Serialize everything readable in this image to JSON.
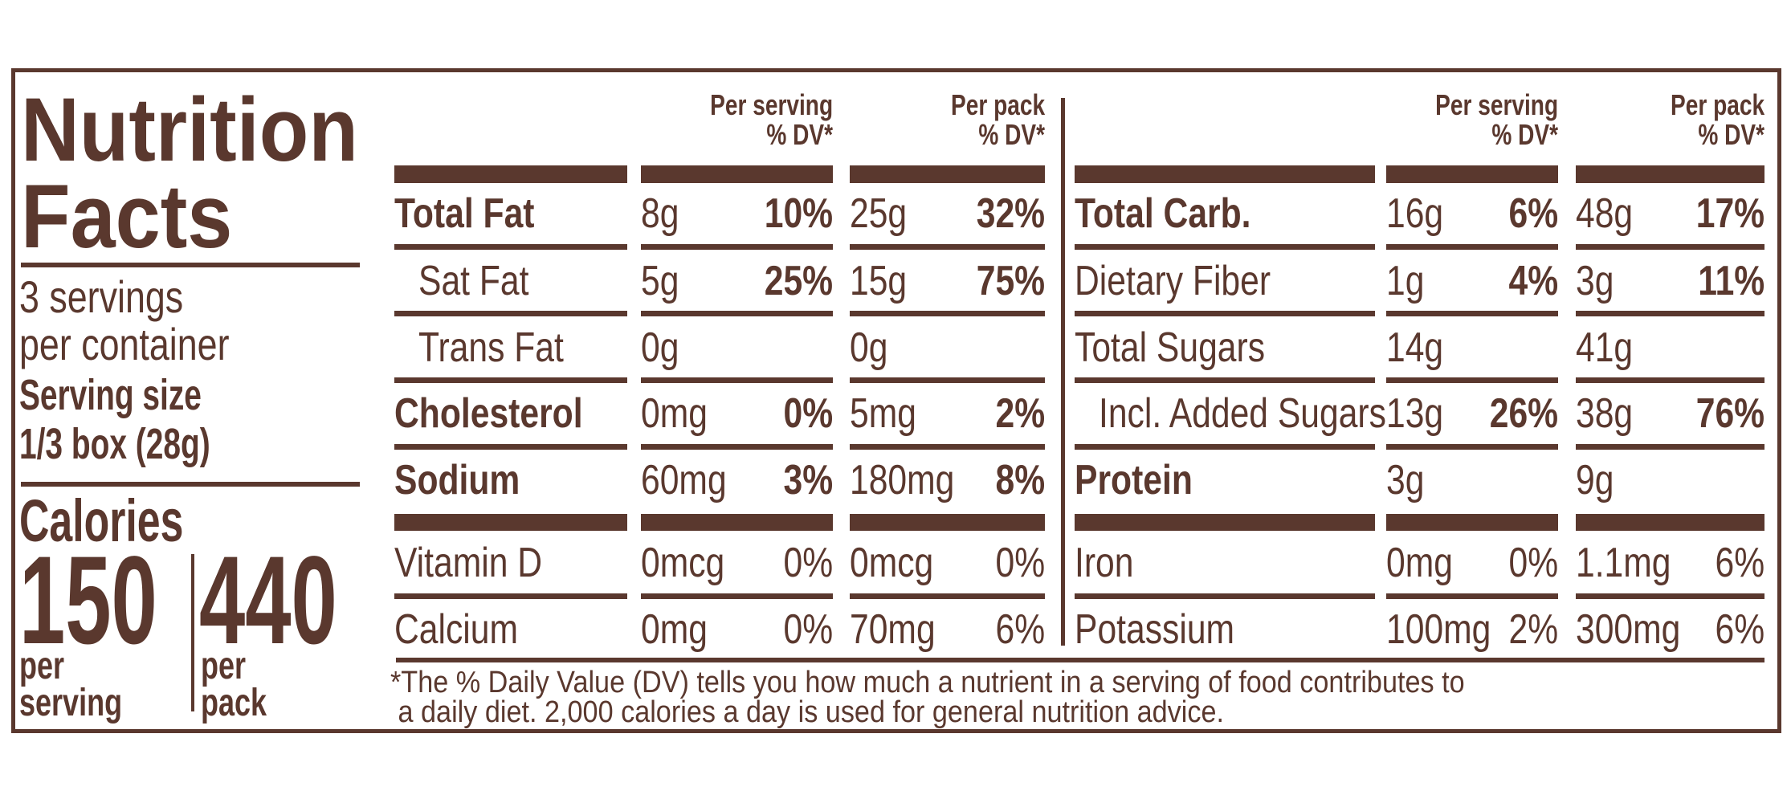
{
  "color": "#5a382e",
  "title": {
    "line1": "Nutrition",
    "line2": "Facts"
  },
  "servings": {
    "line1": "3 servings",
    "line2": "per container"
  },
  "serving_size": {
    "label": "Serving size",
    "value": "1/3 box (28g)"
  },
  "calories": {
    "label": "Calories",
    "per_serving": {
      "value": "150",
      "line1": "per",
      "line2": "serving"
    },
    "per_pack": {
      "value": "440",
      "line1": "per",
      "line2": "pack"
    }
  },
  "headers": {
    "per_serving": {
      "line1": "Per serving",
      "line2": "% DV*"
    },
    "per_pack": {
      "line1": "Per pack",
      "line2": "% DV*"
    }
  },
  "left_table": [
    {
      "name": "Total Fat",
      "bold": true,
      "indent": 0,
      "serv": "8g",
      "serv_dv": "10%",
      "pack": "25g",
      "pack_dv": "32%"
    },
    {
      "name": "Sat Fat",
      "bold": false,
      "indent": 1,
      "serv": "5g",
      "serv_dv": "25%",
      "pack": "15g",
      "pack_dv": "75%"
    },
    {
      "name": "Trans Fat",
      "bold": false,
      "indent": 1,
      "serv": "0g",
      "serv_dv": "",
      "pack": "0g",
      "pack_dv": ""
    },
    {
      "name": "Cholesterol",
      "bold": true,
      "indent": 0,
      "serv": "0mg",
      "serv_dv": "0%",
      "pack": "5mg",
      "pack_dv": "2%"
    },
    {
      "name": "Sodium",
      "bold": true,
      "indent": 0,
      "serv": "60mg",
      "serv_dv": "3%",
      "pack": "180mg",
      "pack_dv": "8%"
    }
  ],
  "right_table": [
    {
      "name": "Total Carb.",
      "bold": true,
      "indent": 0,
      "serv": "16g",
      "serv_dv": "6%",
      "pack": "48g",
      "pack_dv": "17%"
    },
    {
      "name": "Dietary Fiber",
      "bold": false,
      "indent": 0,
      "serv": "1g",
      "serv_dv": "4%",
      "pack": "3g",
      "pack_dv": "11%"
    },
    {
      "name": "Total Sugars",
      "bold": false,
      "indent": 0,
      "serv": "14g",
      "serv_dv": "",
      "pack": "41g",
      "pack_dv": ""
    },
    {
      "name": "Incl. Added Sugars",
      "bold": false,
      "indent": 1,
      "serv": "13g",
      "serv_dv": "26%",
      "pack": "38g",
      "pack_dv": "76%"
    },
    {
      "name": "Protein",
      "bold": true,
      "indent": 0,
      "serv": "3g",
      "serv_dv": "",
      "pack": "9g",
      "pack_dv": ""
    }
  ],
  "left_vitamins": [
    {
      "name": "Vitamin D",
      "serv": "0mcg",
      "serv_dv": "0%",
      "pack": "0mcg",
      "pack_dv": "0%"
    },
    {
      "name": "Calcium",
      "serv": "0mg",
      "serv_dv": "0%",
      "pack": "70mg",
      "pack_dv": "6%"
    }
  ],
  "right_vitamins": [
    {
      "name": "Iron",
      "serv": "0mg",
      "serv_dv": "0%",
      "pack": "1.1mg",
      "pack_dv": "6%"
    },
    {
      "name": "Potassium",
      "serv": "100mg",
      "serv_dv": "2%",
      "pack": "300mg",
      "pack_dv": "6%"
    }
  ],
  "footnote": {
    "line1": "*The % Daily Value (DV) tells you how much a nutrient in a serving of food contributes to",
    "line2": " a daily diet. 2,000 calories a day is used for general nutrition advice."
  }
}
